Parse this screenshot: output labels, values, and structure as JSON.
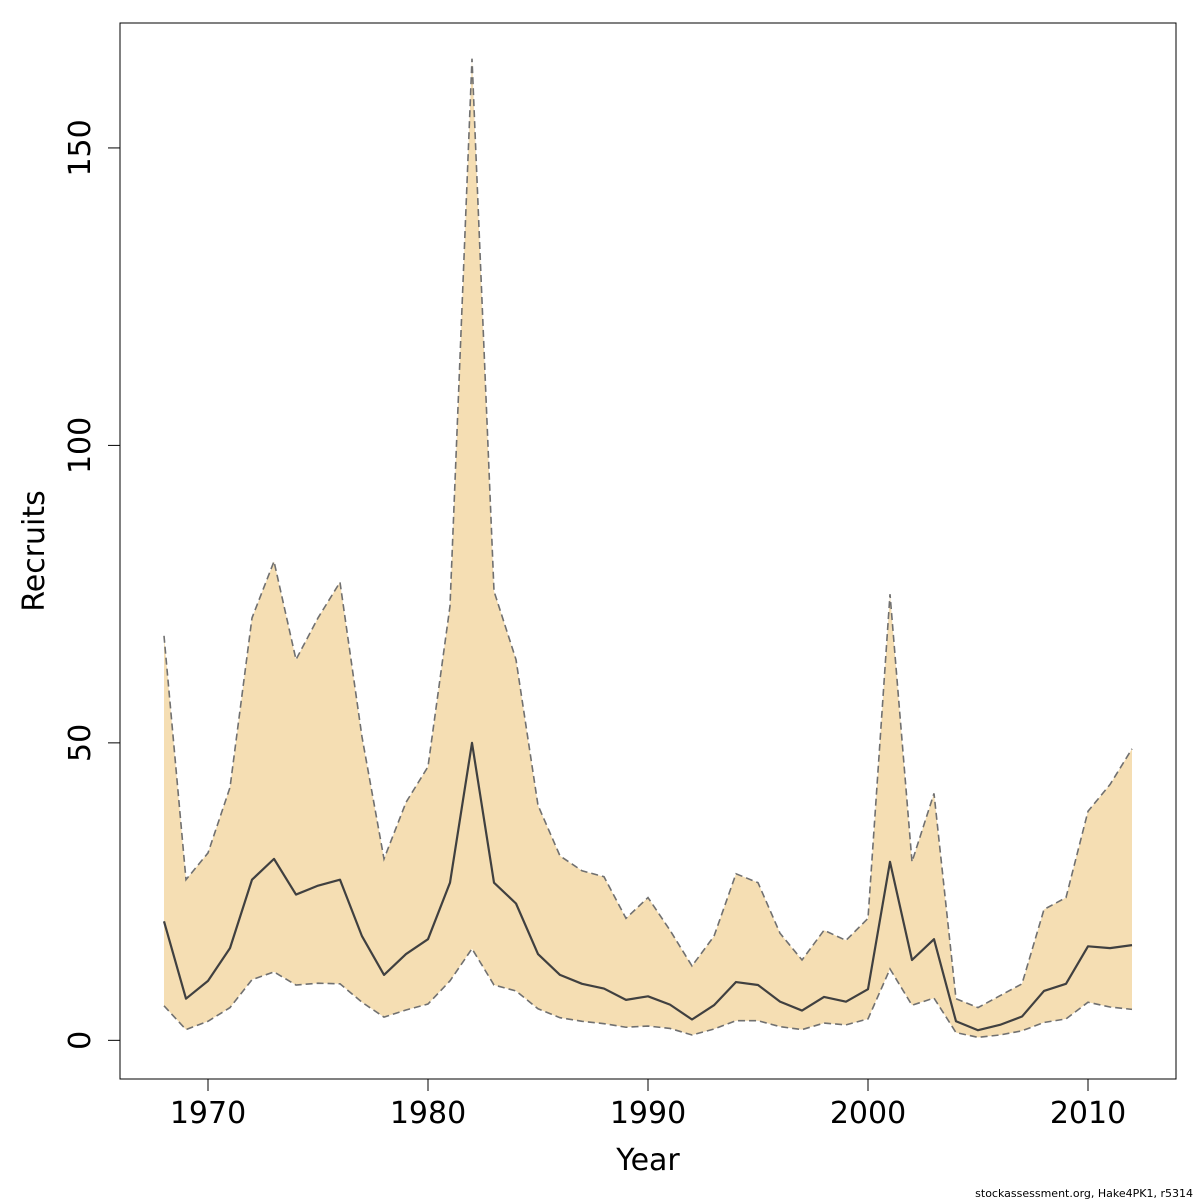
{
  "chart_data": {
    "type": "line",
    "xlabel": "Year",
    "ylabel": "Recruits",
    "xlim": [
      1966,
      2014
    ],
    "ylim": [
      -6.5,
      171
    ],
    "x_ticks": [
      1970,
      1980,
      1990,
      2000,
      2010
    ],
    "y_ticks": [
      0,
      50,
      100,
      150
    ],
    "grid": false,
    "colors": {
      "band": "#f5deb3",
      "bound_line": "#707070",
      "estimate_line": "#404040"
    },
    "x": [
      1968,
      1969,
      1970,
      1971,
      1972,
      1973,
      1974,
      1975,
      1976,
      1977,
      1978,
      1979,
      1980,
      1981,
      1982,
      1983,
      1984,
      1985,
      1986,
      1987,
      1988,
      1989,
      1990,
      1991,
      1992,
      1993,
      1994,
      1995,
      1996,
      1997,
      1998,
      1999,
      2000,
      2001,
      2002,
      2003,
      2004,
      2005,
      2006,
      2007,
      2008,
      2009,
      2010,
      2011,
      2012
    ],
    "series": [
      {
        "role": "estimate",
        "values": [
          20.0,
          7.0,
          10.0,
          15.5,
          27.0,
          30.5,
          24.5,
          26.0,
          27.0,
          17.5,
          11.0,
          14.5,
          17.0,
          26.5,
          50.0,
          26.5,
          23.0,
          14.5,
          11.0,
          9.5,
          8.7,
          6.8,
          7.4,
          6.0,
          3.5,
          5.9,
          9.8,
          9.3,
          6.5,
          5.0,
          7.3,
          6.5,
          8.6,
          30.0,
          13.5,
          17.0,
          3.2,
          1.7,
          2.6,
          4.0,
          8.3,
          9.5,
          15.8,
          15.5,
          16.0
        ]
      },
      {
        "role": "upper",
        "values": [
          68.0,
          27.0,
          31.5,
          42.5,
          71.0,
          80.5,
          64.0,
          71.0,
          77.0,
          51.0,
          30.5,
          40.0,
          46.0,
          73.0,
          165.0,
          75.5,
          64.0,
          39.5,
          31.0,
          28.5,
          27.5,
          20.5,
          24.0,
          18.5,
          12.5,
          17.5,
          28.0,
          26.5,
          18.0,
          13.5,
          18.5,
          16.8,
          20.5,
          75.0,
          30.0,
          41.5,
          7.0,
          5.5,
          7.5,
          9.5,
          22.0,
          24.0,
          38.5,
          43.0,
          49.0
        ]
      },
      {
        "role": "lower",
        "values": [
          5.8,
          1.8,
          3.2,
          5.5,
          10.2,
          11.5,
          9.3,
          9.6,
          9.5,
          6.4,
          3.9,
          5.1,
          6.1,
          10.0,
          15.4,
          9.3,
          8.3,
          5.3,
          3.8,
          3.2,
          2.8,
          2.2,
          2.4,
          2.0,
          0.9,
          1.9,
          3.3,
          3.3,
          2.3,
          1.8,
          2.9,
          2.6,
          3.6,
          12.0,
          5.9,
          7.1,
          1.3,
          0.5,
          0.9,
          1.6,
          3.0,
          3.6,
          6.4,
          5.6,
          5.2
        ]
      }
    ]
  },
  "credit": "stockassessment.org, Hake4PK1, r5314"
}
